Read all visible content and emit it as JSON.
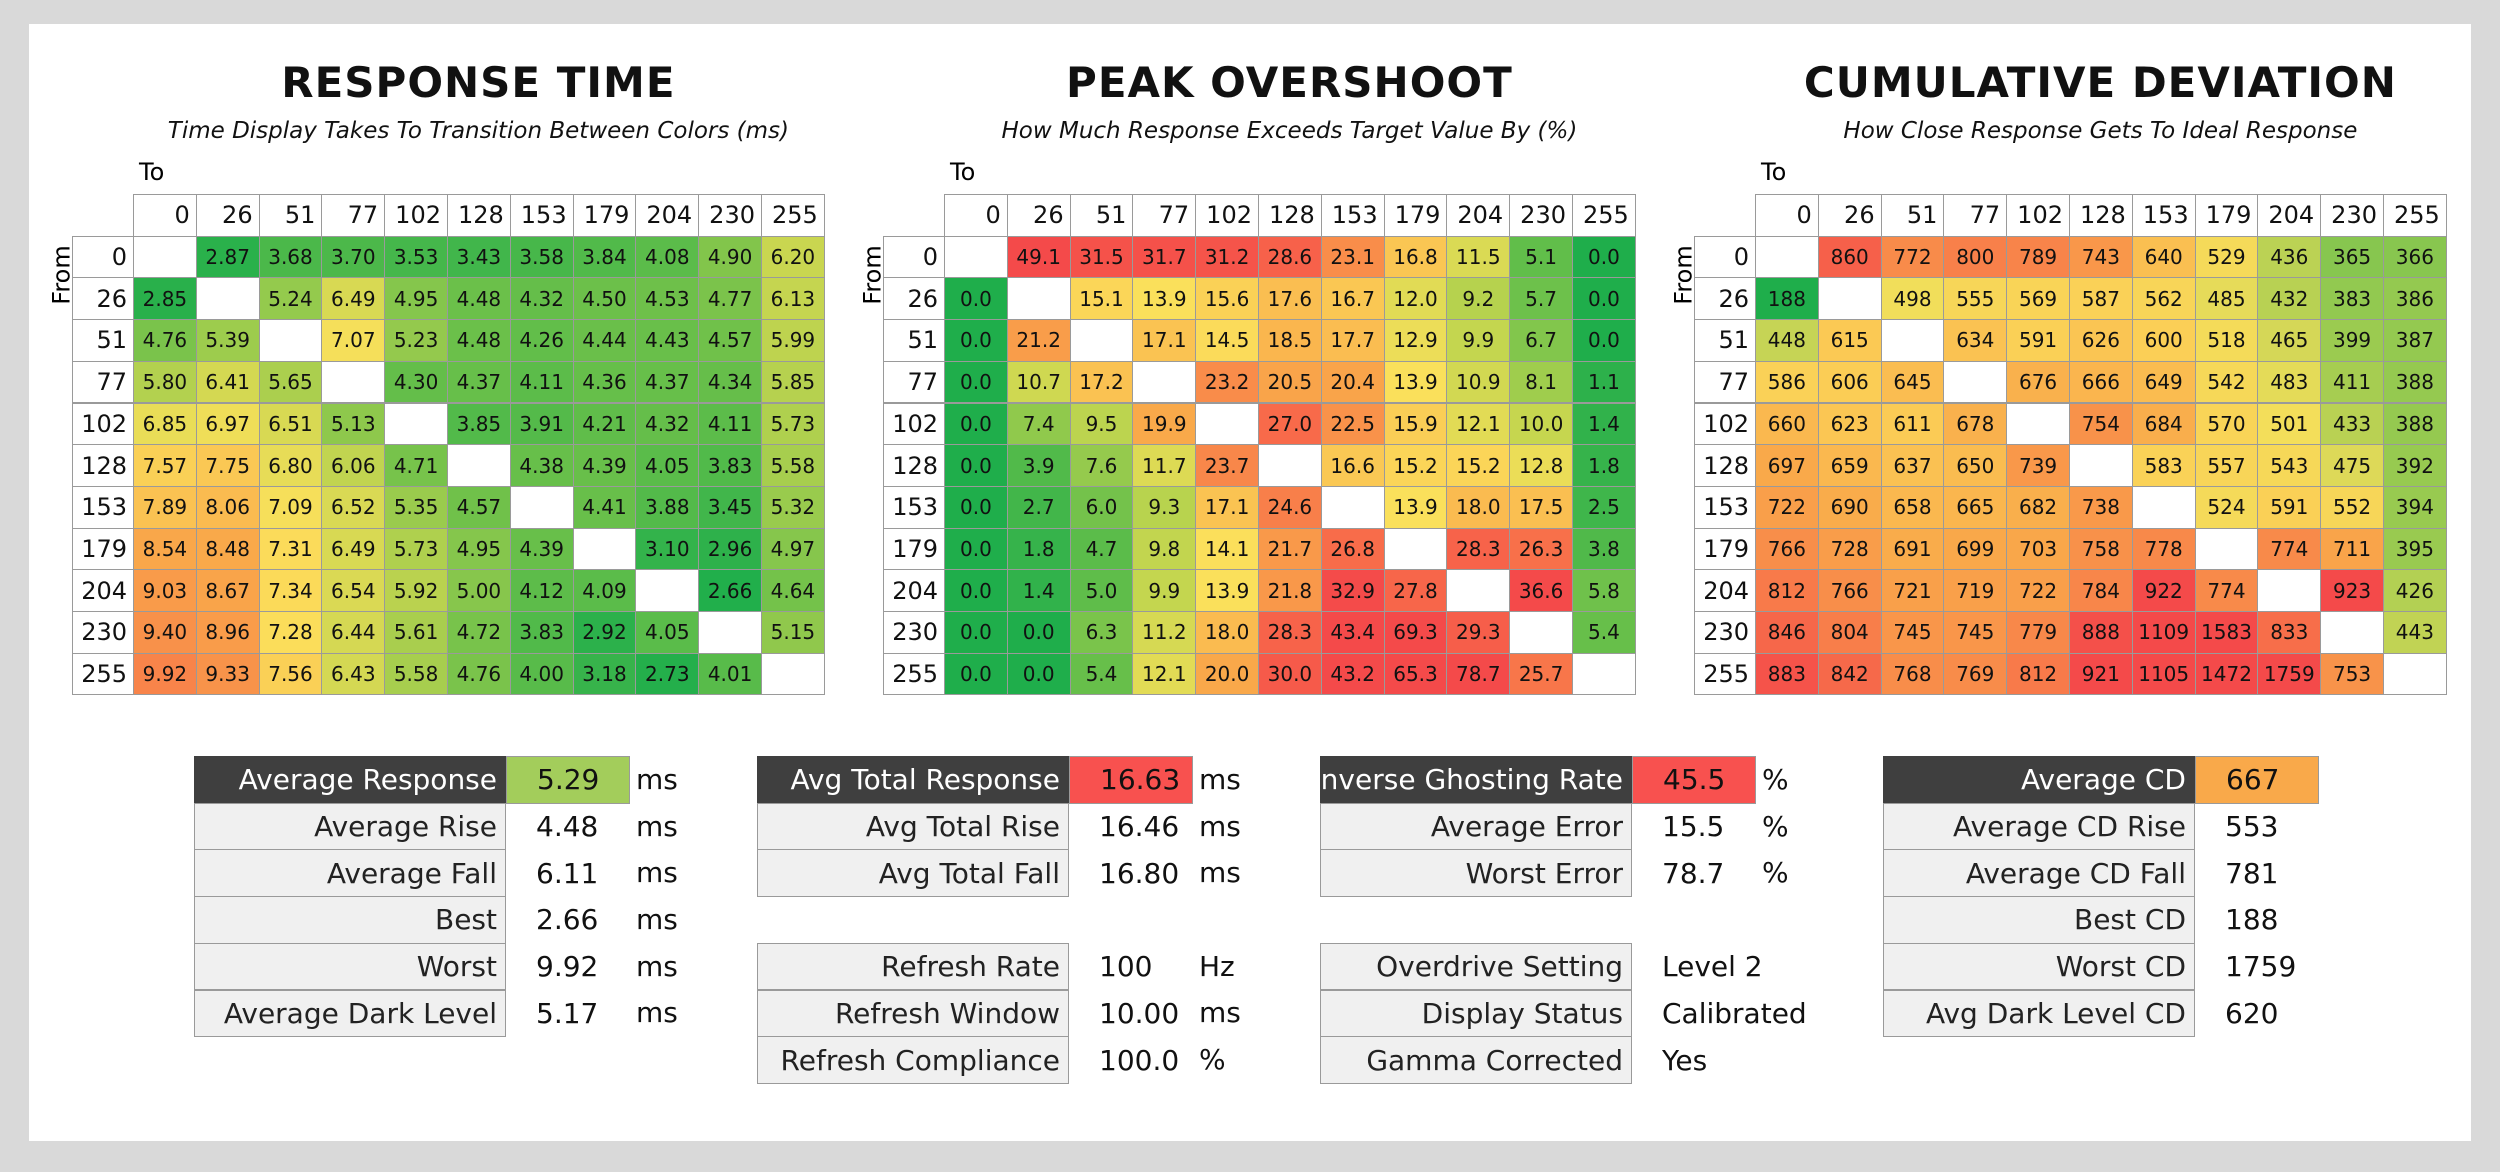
{
  "panels": [
    {
      "title": "RESPONSE TIME",
      "subtitle": "Time Display Takes To Transition Between Colors (ms)",
      "to_label": "To",
      "from_label": "From",
      "columns": [
        "0",
        "26",
        "51",
        "77",
        "102",
        "128",
        "153",
        "179",
        "204",
        "230",
        "255"
      ],
      "row_labels": [
        "0",
        "26",
        "51",
        "77",
        "102",
        "128",
        "153",
        "179",
        "204",
        "230",
        "255"
      ],
      "rows": [
        [
          null,
          "2.87",
          "3.68",
          "3.70",
          "3.53",
          "3.43",
          "3.58",
          "3.84",
          "4.08",
          "4.90",
          "6.20"
        ],
        [
          "2.85",
          null,
          "5.24",
          "6.49",
          "4.95",
          "4.48",
          "4.32",
          "4.50",
          "4.53",
          "4.77",
          "6.13"
        ],
        [
          "4.76",
          "5.39",
          null,
          "7.07",
          "5.23",
          "4.48",
          "4.26",
          "4.44",
          "4.43",
          "4.57",
          "5.99"
        ],
        [
          "5.80",
          "6.41",
          "5.65",
          null,
          "4.30",
          "4.37",
          "4.11",
          "4.36",
          "4.37",
          "4.34",
          "5.85"
        ],
        [
          "6.85",
          "6.97",
          "6.51",
          "5.13",
          null,
          "3.85",
          "3.91",
          "4.21",
          "4.32",
          "4.11",
          "5.73"
        ],
        [
          "7.57",
          "7.75",
          "6.80",
          "6.06",
          "4.71",
          null,
          "4.38",
          "4.39",
          "4.05",
          "3.83",
          "5.58"
        ],
        [
          "7.89",
          "8.06",
          "7.09",
          "6.52",
          "5.35",
          "4.57",
          null,
          "4.41",
          "3.88",
          "3.45",
          "5.32"
        ],
        [
          "8.54",
          "8.48",
          "7.31",
          "6.49",
          "5.73",
          "4.95",
          "4.39",
          null,
          "3.10",
          "2.96",
          "4.97"
        ],
        [
          "9.03",
          "8.67",
          "7.34",
          "6.54",
          "5.92",
          "5.00",
          "4.12",
          "4.09",
          null,
          "2.66",
          "4.64"
        ],
        [
          "9.40",
          "8.96",
          "7.28",
          "6.44",
          "5.61",
          "4.72",
          "3.83",
          "2.92",
          "4.05",
          null,
          "5.15"
        ],
        [
          "9.92",
          "9.33",
          "7.56",
          "6.43",
          "5.58",
          "4.76",
          "4.00",
          "3.18",
          "2.73",
          "4.01",
          null
        ]
      ]
    },
    {
      "title": "PEAK OVERSHOOT",
      "subtitle": "How Much Response Exceeds Target Value By (%)",
      "to_label": "To",
      "from_label": "From",
      "columns": [
        "0",
        "26",
        "51",
        "77",
        "102",
        "128",
        "153",
        "179",
        "204",
        "230",
        "255"
      ],
      "row_labels": [
        "0",
        "26",
        "51",
        "77",
        "102",
        "128",
        "153",
        "179",
        "204",
        "230",
        "255"
      ],
      "rows": [
        [
          null,
          "49.1",
          "31.5",
          "31.7",
          "31.2",
          "28.6",
          "23.1",
          "16.8",
          "11.5",
          "5.1",
          "0.0"
        ],
        [
          "0.0",
          null,
          "15.1",
          "13.9",
          "15.6",
          "17.6",
          "16.7",
          "12.0",
          "9.2",
          "5.7",
          "0.0"
        ],
        [
          "0.0",
          "21.2",
          null,
          "17.1",
          "14.5",
          "18.5",
          "17.7",
          "12.9",
          "9.9",
          "6.7",
          "0.0"
        ],
        [
          "0.0",
          "10.7",
          "17.2",
          null,
          "23.2",
          "20.5",
          "20.4",
          "13.9",
          "10.9",
          "8.1",
          "1.1"
        ],
        [
          "0.0",
          "7.4",
          "9.5",
          "19.9",
          null,
          "27.0",
          "22.5",
          "15.9",
          "12.1",
          "10.0",
          "1.4"
        ],
        [
          "0.0",
          "3.9",
          "7.6",
          "11.7",
          "23.7",
          null,
          "16.6",
          "15.2",
          "15.2",
          "12.8",
          "1.8"
        ],
        [
          "0.0",
          "2.7",
          "6.0",
          "9.3",
          "17.1",
          "24.6",
          null,
          "13.9",
          "18.0",
          "17.5",
          "2.5"
        ],
        [
          "0.0",
          "1.8",
          "4.7",
          "9.8",
          "14.1",
          "21.7",
          "26.8",
          null,
          "28.3",
          "26.3",
          "3.8"
        ],
        [
          "0.0",
          "1.4",
          "5.0",
          "9.9",
          "13.9",
          "21.8",
          "32.9",
          "27.8",
          null,
          "36.6",
          "5.8"
        ],
        [
          "0.0",
          "0.0",
          "6.3",
          "11.2",
          "18.0",
          "28.3",
          "43.4",
          "69.3",
          "29.3",
          null,
          "5.4"
        ],
        [
          "0.0",
          "0.0",
          "5.4",
          "12.1",
          "20.0",
          "30.0",
          "43.2",
          "65.3",
          "78.7",
          "25.7",
          null
        ]
      ]
    },
    {
      "title": "CUMULATIVE DEVIATION",
      "subtitle": "How Close Response Gets To Ideal Response",
      "to_label": "To",
      "from_label": "From",
      "columns": [
        "0",
        "26",
        "51",
        "77",
        "102",
        "128",
        "153",
        "179",
        "204",
        "230",
        "255"
      ],
      "row_labels": [
        "0",
        "26",
        "51",
        "77",
        "102",
        "128",
        "153",
        "179",
        "204",
        "230",
        "255"
      ],
      "rows": [
        [
          null,
          "860",
          "772",
          "800",
          "789",
          "743",
          "640",
          "529",
          "436",
          "365",
          "366"
        ],
        [
          "188",
          null,
          "498",
          "555",
          "569",
          "587",
          "562",
          "485",
          "432",
          "383",
          "386"
        ],
        [
          "448",
          "615",
          null,
          "634",
          "591",
          "626",
          "600",
          "518",
          "465",
          "399",
          "387"
        ],
        [
          "586",
          "606",
          "645",
          null,
          "676",
          "666",
          "649",
          "542",
          "483",
          "411",
          "388"
        ],
        [
          "660",
          "623",
          "611",
          "678",
          null,
          "754",
          "684",
          "570",
          "501",
          "433",
          "388"
        ],
        [
          "697",
          "659",
          "637",
          "650",
          "739",
          null,
          "583",
          "557",
          "543",
          "475",
          "392"
        ],
        [
          "722",
          "690",
          "658",
          "665",
          "682",
          "738",
          null,
          "524",
          "591",
          "552",
          "394"
        ],
        [
          "766",
          "728",
          "691",
          "699",
          "703",
          "758",
          "778",
          null,
          "774",
          "711",
          "395"
        ],
        [
          "812",
          "766",
          "721",
          "719",
          "722",
          "784",
          "922",
          "774",
          null,
          "923",
          "426"
        ],
        [
          "846",
          "804",
          "745",
          "745",
          "779",
          "888",
          "1109",
          "1583",
          "833",
          null,
          "443"
        ],
        [
          "883",
          "842",
          "768",
          "769",
          "812",
          "921",
          "1105",
          "1472",
          "1759",
          "753",
          null
        ]
      ]
    }
  ],
  "stats": [
    {
      "groups": [
        [
          {
            "label": "Average Response",
            "value": "5.29",
            "unit": "ms",
            "color": "#a3cd5b"
          },
          {
            "label": "Average Rise",
            "value": "4.48",
            "unit": "ms"
          },
          {
            "label": "Average Fall",
            "value": "6.11",
            "unit": "ms"
          },
          {
            "label": "Best",
            "value": "2.66",
            "unit": "ms"
          },
          {
            "label": "Worst",
            "value": "9.92",
            "unit": "ms"
          },
          {
            "label": "Average Dark Level",
            "value": "5.17",
            "unit": "ms"
          }
        ]
      ]
    },
    {
      "groups": [
        [
          {
            "label": "Avg Total Response",
            "value": "16.63",
            "unit": "ms",
            "color": "#f8514f"
          },
          {
            "label": "Avg Total Rise",
            "value": "16.46",
            "unit": "ms"
          },
          {
            "label": "Avg Total Fall",
            "value": "16.80",
            "unit": "ms"
          }
        ],
        [
          {
            "label": "Refresh Rate",
            "value": "100",
            "unit": "Hz"
          },
          {
            "label": "Refresh Window",
            "value": "10.00",
            "unit": "ms"
          },
          {
            "label": "Refresh Compliance",
            "value": "100.0",
            "unit": "%"
          }
        ]
      ]
    },
    {
      "groups": [
        [
          {
            "label": "Inverse Ghosting Rate",
            "value": "45.5",
            "unit": "%",
            "color": "#f8514f"
          },
          {
            "label": "Average Error",
            "value": "15.5",
            "unit": "%"
          },
          {
            "label": "Worst Error",
            "value": "78.7",
            "unit": "%"
          }
        ],
        [
          {
            "label": "Overdrive Setting",
            "value": "Level 2"
          },
          {
            "label": "Display Status",
            "value": "Calibrated"
          },
          {
            "label": "Gamma Corrected",
            "value": "Yes"
          }
        ]
      ]
    },
    {
      "groups": [
        [
          {
            "label": "Average CD",
            "value": "667",
            "color": "#f9a94a"
          },
          {
            "label": "Average CD Rise",
            "value": "553"
          },
          {
            "label": "Average CD Fall",
            "value": "781"
          },
          {
            "label": "Best CD",
            "value": "188"
          },
          {
            "label": "Worst CD",
            "value": "1759"
          },
          {
            "label": "Avg Dark Level CD",
            "value": "620"
          }
        ]
      ]
    }
  ]
}
